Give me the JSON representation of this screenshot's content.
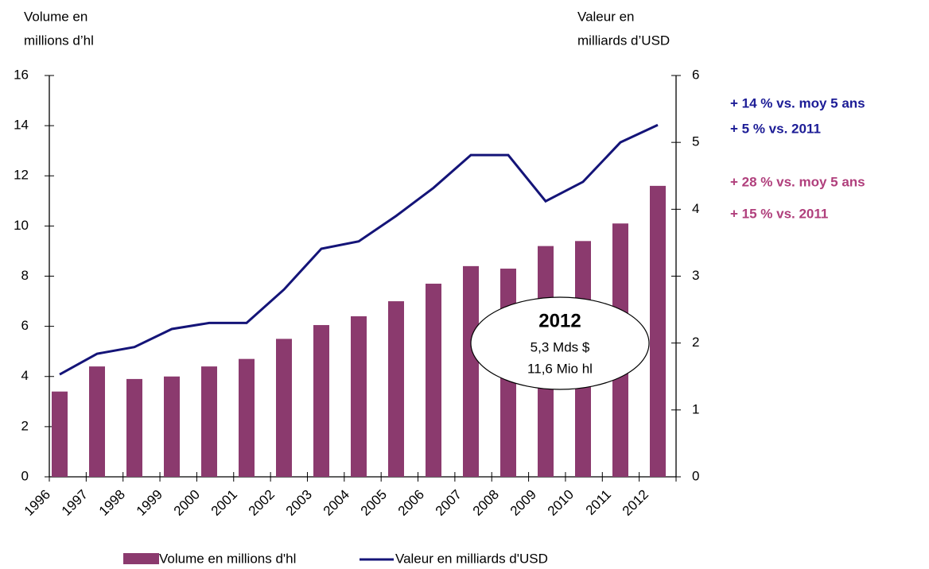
{
  "chart_data": {
    "type": "bar-line",
    "ylabel": [
      "Volume en",
      "millions d’hl"
    ],
    "y2label": [
      "Valeur en",
      "milliards d’USD"
    ],
    "categories": [
      "1996",
      "1997",
      "1998",
      "1999",
      "2000",
      "2001",
      "2002",
      "2003",
      "2004",
      "2005",
      "2006",
      "2007",
      "2008",
      "2009",
      "2010",
      "2011",
      "2012"
    ],
    "series": [
      {
        "name": "Volume en millions d'hl",
        "type": "bar",
        "color": "#8b3a6e",
        "axis": "y",
        "values": [
          3.4,
          4.4,
          3.9,
          4.0,
          4.4,
          4.7,
          5.5,
          6.05,
          6.4,
          7.0,
          7.7,
          8.4,
          8.3,
          9.2,
          9.4,
          10.1,
          11.6
        ]
      },
      {
        "name": "Valeur en milliards d'USD",
        "type": "line",
        "color": "#141478",
        "axis": "y2",
        "values": [
          1.53,
          1.84,
          1.94,
          2.21,
          2.3,
          2.3,
          2.8,
          3.41,
          3.52,
          3.9,
          4.32,
          4.81,
          4.81,
          4.12,
          4.41,
          5.0,
          5.26
        ]
      }
    ],
    "ylim": [
      0,
      16
    ],
    "yticks": [
      0,
      2,
      4,
      6,
      8,
      10,
      12,
      14,
      16
    ],
    "y2lim": [
      0,
      6
    ],
    "y2ticks": [
      0,
      1,
      2,
      3,
      4,
      5,
      6
    ],
    "annotations": [
      {
        "text": "+ 14 % vs. moy 5 ans",
        "color": "#1c1c96"
      },
      {
        "text": "+ 5 % vs. 2011",
        "color": "#1c1c96"
      },
      {
        "text": "+ 28 % vs. moy 5 ans",
        "color": "#b03f7c"
      },
      {
        "text": "+ 15 % vs. 2011",
        "color": "#b03f7c"
      }
    ],
    "callout": [
      "2012",
      "5,3 Mds $",
      "11,6 Mio hl"
    ]
  }
}
